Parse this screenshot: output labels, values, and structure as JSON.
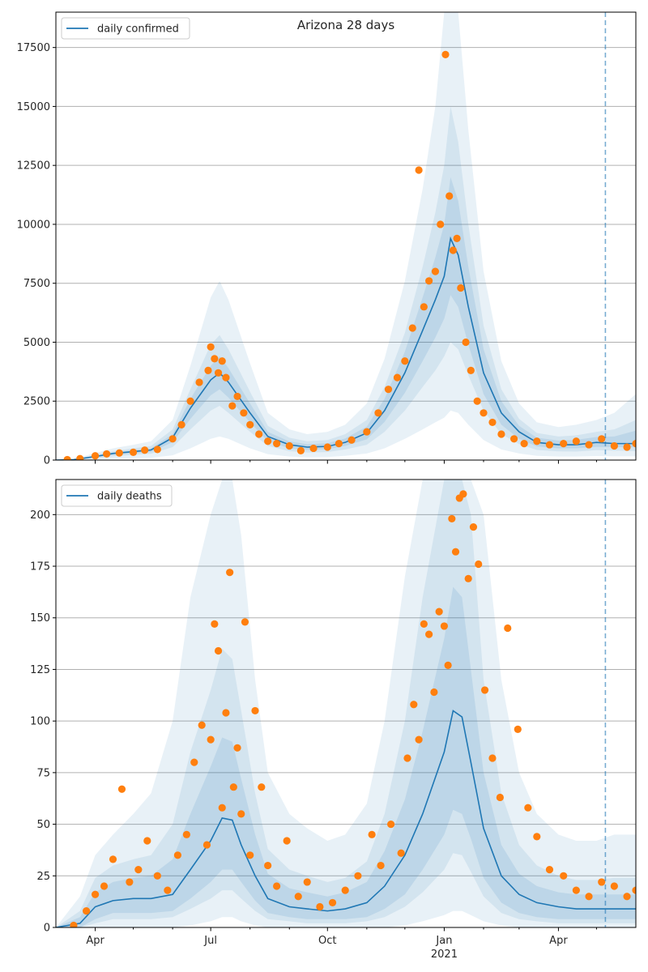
{
  "chart_data": [
    {
      "type": "line",
      "title": "Arizona 28 days",
      "legend": {
        "entries": [
          "daily confirmed"
        ],
        "placement": "top-left"
      },
      "x_tick_labels": [
        "Apr",
        "Jul",
        "Oct",
        "Jan",
        "Apr"
      ],
      "x_year_label": "2021",
      "x_range": [
        "2020-03-01",
        "2021-06-01"
      ],
      "y_range": [
        0,
        19000
      ],
      "y_ticks": [
        0,
        2500,
        5000,
        7500,
        10000,
        12500,
        15000,
        17500
      ],
      "grid": "horizontal",
      "vline_date": "2021-05-08",
      "series": [
        {
          "name": "daily confirmed",
          "kind": "line",
          "x": [
            "2020-03-01",
            "2020-03-15",
            "2020-04-01",
            "2020-04-15",
            "2020-05-01",
            "2020-05-15",
            "2020-06-01",
            "2020-06-15",
            "2020-07-01",
            "2020-07-08",
            "2020-07-15",
            "2020-08-01",
            "2020-08-15",
            "2020-09-01",
            "2020-09-15",
            "2020-10-01",
            "2020-10-15",
            "2020-11-01",
            "2020-11-15",
            "2020-12-01",
            "2020-12-15",
            "2020-12-25",
            "2021-01-01",
            "2021-01-06",
            "2021-01-12",
            "2021-01-20",
            "2021-02-01",
            "2021-02-15",
            "2021-03-01",
            "2021-03-15",
            "2021-04-01",
            "2021-04-15",
            "2021-05-01",
            "2021-05-15",
            "2021-06-01"
          ],
          "values": [
            0,
            20,
            150,
            280,
            360,
            430,
            950,
            2200,
            3400,
            3700,
            3300,
            2000,
            1000,
            650,
            550,
            580,
            750,
            1150,
            2100,
            3700,
            5500,
            6800,
            7800,
            9400,
            8700,
            6500,
            3700,
            2000,
            1200,
            750,
            650,
            650,
            750,
            700,
            700
          ]
        },
        {
          "name": "bands",
          "kind": "band",
          "x": [
            "2020-03-01",
            "2020-03-15",
            "2020-04-01",
            "2020-04-15",
            "2020-05-01",
            "2020-05-15",
            "2020-06-01",
            "2020-06-15",
            "2020-07-01",
            "2020-07-08",
            "2020-07-15",
            "2020-08-01",
            "2020-08-15",
            "2020-09-01",
            "2020-09-15",
            "2020-10-01",
            "2020-10-15",
            "2020-11-01",
            "2020-11-15",
            "2020-12-01",
            "2020-12-15",
            "2020-12-25",
            "2021-01-01",
            "2021-01-06",
            "2021-01-12",
            "2021-01-20",
            "2021-02-01",
            "2021-02-15",
            "2021-03-01",
            "2021-03-15",
            "2021-04-01",
            "2021-04-15",
            "2021-05-01",
            "2021-05-15",
            "2021-06-01"
          ],
          "outer_hi": [
            0,
            40,
            300,
            500,
            650,
            800,
            1700,
            4000,
            6900,
            7600,
            6800,
            4100,
            2000,
            1300,
            1100,
            1200,
            1500,
            2400,
            4300,
            7600,
            11500,
            15000,
            19000,
            19000,
            19000,
            14000,
            8000,
            4200,
            2400,
            1600,
            1400,
            1500,
            1700,
            2000,
            2800
          ],
          "outer_lo": [
            0,
            0,
            20,
            50,
            80,
            100,
            200,
            500,
            900,
            1000,
            900,
            500,
            250,
            150,
            120,
            130,
            180,
            280,
            500,
            900,
            1300,
            1600,
            1800,
            2100,
            2000,
            1500,
            850,
            450,
            280,
            180,
            150,
            150,
            170,
            160,
            160
          ],
          "mid_hi": [
            0,
            30,
            220,
            380,
            500,
            600,
            1300,
            3000,
            4900,
            5300,
            4700,
            2900,
            1450,
            950,
            800,
            850,
            1100,
            1700,
            3100,
            5400,
            8200,
            10500,
            12500,
            15000,
            13500,
            10000,
            5700,
            3000,
            1750,
            1150,
            1000,
            1050,
            1200,
            1300,
            1700
          ],
          "mid_lo": [
            0,
            5,
            70,
            160,
            220,
            270,
            550,
            1300,
            2100,
            2300,
            2000,
            1200,
            600,
            380,
            320,
            340,
            450,
            650,
            1200,
            2100,
            3100,
            3800,
            4400,
            5000,
            4700,
            3600,
            2100,
            1100,
            680,
            430,
            370,
            360,
            420,
            400,
            380
          ],
          "inner_hi": [
            0,
            25,
            180,
            320,
            420,
            500,
            1100,
            2600,
            4000,
            4400,
            3900,
            2400,
            1200,
            790,
            670,
            710,
            920,
            1420,
            2600,
            4600,
            6900,
            8600,
            10000,
            12000,
            11000,
            8200,
            4700,
            2500,
            1450,
            950,
            830,
            860,
            980,
            1000,
            1250
          ],
          "inner_lo": [
            0,
            10,
            110,
            220,
            290,
            350,
            760,
            1750,
            2750,
            3000,
            2650,
            1600,
            800,
            500,
            430,
            460,
            600,
            880,
            1620,
            2850,
            4200,
            5200,
            6000,
            7000,
            6500,
            4900,
            2800,
            1500,
            900,
            580,
            500,
            500,
            560,
            550,
            540
          ]
        }
      ],
      "observations": {
        "kind": "scatter",
        "note": "daily reported counts (orange points)",
        "x": [
          "2020-03-10",
          "2020-03-20",
          "2020-04-01",
          "2020-04-10",
          "2020-04-20",
          "2020-05-01",
          "2020-05-10",
          "2020-05-20",
          "2020-06-01",
          "2020-06-08",
          "2020-06-15",
          "2020-06-22",
          "2020-06-29",
          "2020-07-01",
          "2020-07-04",
          "2020-07-07",
          "2020-07-10",
          "2020-07-13",
          "2020-07-18",
          "2020-07-22",
          "2020-07-27",
          "2020-08-01",
          "2020-08-08",
          "2020-08-15",
          "2020-08-22",
          "2020-09-01",
          "2020-09-10",
          "2020-09-20",
          "2020-10-01",
          "2020-10-10",
          "2020-10-20",
          "2020-11-01",
          "2020-11-10",
          "2020-11-18",
          "2020-11-25",
          "2020-12-01",
          "2020-12-07",
          "2020-12-12",
          "2020-12-16",
          "2020-12-20",
          "2020-12-25",
          "2020-12-29",
          "2021-01-02",
          "2021-01-05",
          "2021-01-08",
          "2021-01-11",
          "2021-01-14",
          "2021-01-18",
          "2021-01-22",
          "2021-01-27",
          "2021-02-01",
          "2021-02-08",
          "2021-02-15",
          "2021-02-25",
          "2021-03-05",
          "2021-03-15",
          "2021-03-25",
          "2021-04-05",
          "2021-04-15",
          "2021-04-25",
          "2021-05-05",
          "2021-05-15",
          "2021-05-25",
          "2021-06-01"
        ],
        "values": [
          20,
          60,
          180,
          260,
          300,
          330,
          420,
          450,
          900,
          1500,
          2500,
          3300,
          3800,
          4800,
          4300,
          3700,
          4200,
          3500,
          2300,
          2700,
          2000,
          1500,
          1100,
          800,
          700,
          600,
          400,
          500,
          550,
          700,
          850,
          1200,
          2000,
          3000,
          3500,
          4200,
          5600,
          12300,
          6500,
          7600,
          8000,
          10000,
          17200,
          11200,
          8900,
          9400,
          7300,
          5000,
          3800,
          2500,
          2000,
          1600,
          1100,
          900,
          700,
          800,
          650,
          700,
          800,
          650,
          900,
          600,
          550,
          700
        ]
      }
    },
    {
      "type": "line",
      "title": "",
      "legend": {
        "entries": [
          "daily deaths"
        ],
        "placement": "top-left"
      },
      "x_tick_labels": [
        "Apr",
        "Jul",
        "Oct",
        "Jan",
        "Apr"
      ],
      "x_year_label": "2021",
      "x_range": [
        "2020-03-01",
        "2021-06-01"
      ],
      "y_range": [
        0,
        217
      ],
      "y_ticks": [
        0,
        25,
        50,
        75,
        100,
        125,
        150,
        175,
        200
      ],
      "grid": "horizontal",
      "vline_date": "2021-05-08",
      "series": [
        {
          "name": "daily deaths",
          "kind": "line",
          "x": [
            "2020-03-01",
            "2020-03-20",
            "2020-04-01",
            "2020-04-15",
            "2020-05-01",
            "2020-05-15",
            "2020-06-01",
            "2020-06-15",
            "2020-07-01",
            "2020-07-10",
            "2020-07-18",
            "2020-07-25",
            "2020-08-05",
            "2020-08-15",
            "2020-09-01",
            "2020-09-15",
            "2020-10-01",
            "2020-10-15",
            "2020-11-01",
            "2020-11-15",
            "2020-12-01",
            "2020-12-15",
            "2021-01-01",
            "2021-01-08",
            "2021-01-15",
            "2021-01-22",
            "2021-02-01",
            "2021-02-15",
            "2021-03-01",
            "2021-03-15",
            "2021-04-01",
            "2021-04-15",
            "2021-05-01",
            "2021-05-15",
            "2021-06-01"
          ],
          "values": [
            0,
            2,
            10,
            13,
            14,
            14,
            16,
            28,
            42,
            53,
            52,
            40,
            25,
            14,
            10,
            9,
            8,
            9,
            12,
            20,
            35,
            55,
            85,
            105,
            102,
            80,
            48,
            25,
            16,
            12,
            10,
            9,
            9,
            9,
            9
          ]
        },
        {
          "name": "bands",
          "kind": "band",
          "x": [
            "2020-03-01",
            "2020-03-20",
            "2020-04-01",
            "2020-04-15",
            "2020-05-01",
            "2020-05-15",
            "2020-06-01",
            "2020-06-15",
            "2020-07-01",
            "2020-07-10",
            "2020-07-18",
            "2020-07-25",
            "2020-08-05",
            "2020-08-15",
            "2020-09-01",
            "2020-09-15",
            "2020-10-01",
            "2020-10-15",
            "2020-11-01",
            "2020-11-15",
            "2020-12-01",
            "2020-12-15",
            "2021-01-01",
            "2021-01-08",
            "2021-01-15",
            "2021-01-22",
            "2021-02-01",
            "2021-02-15",
            "2021-03-01",
            "2021-03-15",
            "2021-04-01",
            "2021-04-15",
            "2021-05-01",
            "2021-05-15",
            "2021-06-01"
          ],
          "outer_hi": [
            0,
            15,
            35,
            45,
            55,
            65,
            100,
            160,
            200,
            217,
            217,
            190,
            120,
            75,
            55,
            48,
            42,
            45,
            60,
            100,
            170,
            217,
            217,
            217,
            217,
            217,
            200,
            120,
            75,
            55,
            45,
            42,
            42,
            45,
            45
          ],
          "outer_lo": [
            0,
            0,
            0,
            0,
            0,
            0,
            0,
            1,
            3,
            5,
            5,
            3,
            1,
            0,
            0,
            0,
            0,
            0,
            0,
            0,
            1,
            3,
            6,
            8,
            8,
            6,
            3,
            1,
            0,
            0,
            0,
            0,
            0,
            0,
            0
          ],
          "mid_hi": [
            0,
            8,
            24,
            30,
            33,
            35,
            50,
            85,
            115,
            135,
            130,
            105,
            65,
            38,
            28,
            25,
            22,
            24,
            32,
            55,
            100,
            160,
            217,
            217,
            217,
            200,
            120,
            65,
            40,
            30,
            25,
            23,
            23,
            24,
            24
          ],
          "mid_lo": [
            0,
            0,
            2,
            4,
            4,
            4,
            5,
            9,
            14,
            18,
            18,
            14,
            8,
            4,
            3,
            2,
            2,
            2,
            3,
            5,
            10,
            17,
            28,
            36,
            35,
            27,
            15,
            7,
            4,
            3,
            2,
            2,
            2,
            2,
            2
          ],
          "inner_hi": [
            0,
            5,
            17,
            22,
            24,
            25,
            33,
            55,
            78,
            92,
            90,
            72,
            45,
            26,
            19,
            17,
            15,
            17,
            22,
            37,
            62,
            95,
            140,
            165,
            160,
            125,
            75,
            40,
            26,
            20,
            17,
            16,
            16,
            16,
            16
          ],
          "inner_lo": [
            0,
            0,
            4,
            7,
            7,
            7,
            8,
            14,
            22,
            28,
            28,
            22,
            13,
            7,
            5,
            4,
            4,
            4,
            5,
            9,
            16,
            28,
            45,
            57,
            55,
            43,
            24,
            12,
            7,
            5,
            4,
            4,
            4,
            4,
            4
          ]
        }
      ],
      "observations": {
        "kind": "scatter",
        "note": "daily reported deaths (orange points)",
        "x": [
          "2020-03-15",
          "2020-03-25",
          "2020-04-01",
          "2020-04-08",
          "2020-04-15",
          "2020-04-22",
          "2020-04-28",
          "2020-05-05",
          "2020-05-12",
          "2020-05-20",
          "2020-05-28",
          "2020-06-05",
          "2020-06-12",
          "2020-06-18",
          "2020-06-24",
          "2020-06-28",
          "2020-07-01",
          "2020-07-04",
          "2020-07-07",
          "2020-07-10",
          "2020-07-13",
          "2020-07-16",
          "2020-07-19",
          "2020-07-22",
          "2020-07-25",
          "2020-07-28",
          "2020-08-01",
          "2020-08-05",
          "2020-08-10",
          "2020-08-15",
          "2020-08-22",
          "2020-08-30",
          "2020-09-08",
          "2020-09-15",
          "2020-09-25",
          "2020-10-05",
          "2020-10-15",
          "2020-10-25",
          "2020-11-05",
          "2020-11-12",
          "2020-11-20",
          "2020-11-28",
          "2020-12-03",
          "2020-12-08",
          "2020-12-12",
          "2020-12-16",
          "2020-12-20",
          "2020-12-24",
          "2020-12-28",
          "2021-01-01",
          "2021-01-04",
          "2021-01-07",
          "2021-01-10",
          "2021-01-13",
          "2021-01-16",
          "2021-01-20",
          "2021-01-24",
          "2021-01-28",
          "2021-02-02",
          "2021-02-08",
          "2021-02-14",
          "2021-02-20",
          "2021-02-28",
          "2021-03-08",
          "2021-03-15",
          "2021-03-25",
          "2021-04-05",
          "2021-04-15",
          "2021-04-25",
          "2021-05-05",
          "2021-05-15",
          "2021-05-25",
          "2021-06-01"
        ],
        "values": [
          1,
          8,
          16,
          20,
          33,
          67,
          22,
          28,
          42,
          25,
          18,
          35,
          45,
          80,
          98,
          40,
          91,
          147,
          134,
          58,
          104,
          172,
          68,
          87,
          55,
          148,
          35,
          105,
          68,
          30,
          20,
          42,
          15,
          22,
          10,
          12,
          18,
          25,
          45,
          30,
          50,
          36,
          82,
          108,
          91,
          147,
          142,
          114,
          153,
          146,
          127,
          198,
          182,
          208,
          210,
          169,
          194,
          176,
          115,
          82,
          63,
          145,
          96,
          58,
          44,
          28,
          25,
          18,
          15,
          22,
          20,
          15,
          18
        ]
      }
    }
  ]
}
